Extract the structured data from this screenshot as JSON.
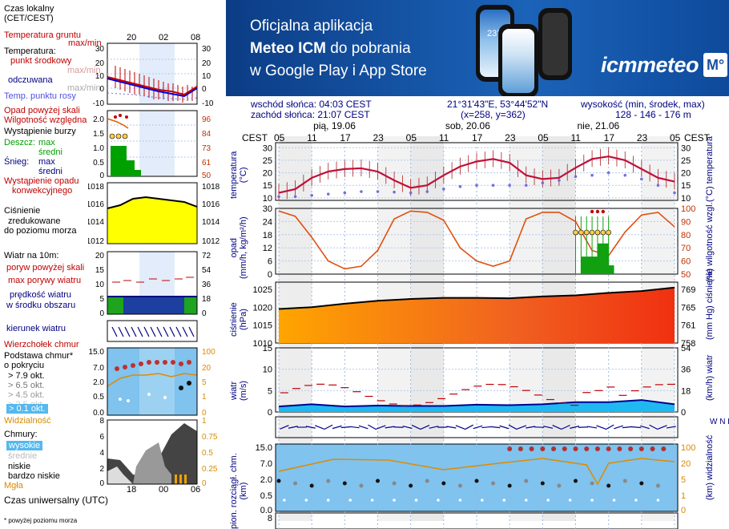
{
  "banner": {
    "line1": "Oficjalna aplikacja",
    "line2_bold": "Meteo ICM",
    "line2_rest": " do pobrania",
    "line3": "w Google Play i App Store",
    "logo_text": "icmmeteo",
    "logo_box": "M°",
    "phone_temp": "23°",
    "bg_color": "#1b63b8"
  },
  "info": {
    "sunrise": "wschód słońca: 04:03 CEST",
    "sunset": "zachód słońca: 21:07 CEST",
    "coords": "21°31'43\"E, 53°44'52\"N",
    "grid": "(x=258,  y=362)",
    "elev_title": "wysokość (min, środek, max)",
    "elev_values": "128 - 146 - 176 m"
  },
  "legend": {
    "time_local": "Czas lokalny\n(CET/CEST)",
    "soil_temp": "Temperatura gruntu",
    "soil_maxmin": "max/min",
    "temperature": "Temperatura:",
    "mid_point": "punkt środkowy",
    "mid_maxmin": "max/min",
    "felt": "odczuwana",
    "felt_maxmin": "max/min",
    "dew_point": "Temp. punktu rosy",
    "precip_above": "Opad powyżej skali",
    "rel_humidity": "Wilgotność względna",
    "storm": "Wystąpienie burzy",
    "rain": "Deszcz:",
    "rain_max": "max",
    "rain_mean": "średni",
    "snow": "Śnieg:",
    "snow_max": "max",
    "snow_mean": "średni",
    "precip_occ1": "Wystąpienie opadu",
    "precip_occ2": "konwekcyjnego",
    "pressure1": "Ciśnienie",
    "pressure2": "zredukowane",
    "pressure3": "do poziomu morza",
    "wind10": "Wiatr na 10m:",
    "gust_above": "poryw powyżej skali",
    "gust_max": "max porywy wiatru",
    "wind_mean1": "prędkość wiatru",
    "wind_mean2": "w środku obszaru",
    "wind_dir": "kierunek wiatru",
    "cloud_top": "Wierzchołek chmur",
    "cloud_base1": "Podstawa chmur*",
    "cloud_base2": "o pokryciu",
    "okt79": "> 7.9 okt.",
    "okt65": "> 6.5 okt.",
    "okt45": "> 4.5 okt.",
    "okt25": "> 2.5 okt.",
    "okt01": "> 0.1 okt.",
    "visibility": "Widzialność",
    "clouds": "Chmury:",
    "high": "wysokie",
    "medium": "średnie",
    "low": "niskie",
    "very_low": "bardzo niskie",
    "fog": "Mgła",
    "utc": "Czas uniwersalny (UTC)",
    "footnote": "* powyżej poziomu morza",
    "top_ticks": [
      "20",
      "02",
      "08"
    ],
    "bottom_ticks": [
      "18",
      "00",
      "06"
    ],
    "left_temp_ticks": [
      "30",
      "20",
      "10",
      "0",
      "-10"
    ],
    "right_temp_ticks": [
      "30",
      "20",
      "10",
      "0",
      "-10"
    ],
    "left_rain_ticks": [
      "2.0",
      "1.5",
      "1.0",
      "0.5",
      "0"
    ],
    "right_rh_ticks": [
      "96",
      "84",
      "73",
      "61",
      "50"
    ],
    "left_p_ticks": [
      "1018",
      "1016",
      "1014",
      "1012"
    ],
    "right_p_ticks": [
      "1018",
      "1016",
      "1014",
      "1012"
    ],
    "left_w_ticks": [
      "20",
      "15",
      "10",
      "5",
      "0"
    ],
    "right_w_ticks": [
      "72",
      "54",
      "36",
      "18",
      "0"
    ],
    "left_cb_ticks": [
      "15.0",
      "7.0",
      "2.0",
      "0.5",
      "0.0"
    ],
    "right_vis_ticks": [
      "100",
      "20",
      "5",
      "1",
      "0"
    ],
    "left_cl_ticks": [
      "8",
      "6",
      "4",
      "2",
      "0"
    ],
    "right_cl_ticks": [
      "1",
      "0.75",
      "0.5",
      "0.25",
      "0"
    ]
  },
  "main": {
    "tz": "CEST",
    "days": [
      "pią, 19.06",
      "sob, 20.06",
      "nie, 21.06"
    ],
    "hours": [
      "05",
      "11",
      "17",
      "23",
      "05",
      "11",
      "17",
      "23",
      "05",
      "11",
      "17",
      "23",
      "05"
    ],
    "temp_ylabel": "temperatura\n(°C)",
    "temp_ylabel_r": "(°C)  temperatura",
    "temp_ticks": [
      "30",
      "25",
      "20",
      "15",
      "10"
    ],
    "precip_ylabel": "opad\n(mm/h, kg/m²/h)",
    "precip_ylabel_r": "(%)  wilgotność wzgl.",
    "precip_ticks": [
      "30",
      "24",
      "18",
      "12",
      "6",
      "0"
    ],
    "rh_ticks": [
      "100",
      "90",
      "80",
      "70",
      "60",
      "50"
    ],
    "press_ylabel": "ciśnienie\n(hPa)",
    "press_ylabel_r": "(mm Hg)  ciśnienie",
    "press_ticks": [
      "1025",
      "1020",
      "1015",
      "1010"
    ],
    "mmhg_ticks": [
      "769",
      "765",
      "761",
      "758"
    ],
    "wind_ylabel": "wiatr\n(m/s)",
    "wind_ylabel_r": "(km/h)  wiatr",
    "wind_ticks": [
      "15",
      "10",
      "5",
      "0"
    ],
    "kmh_ticks": [
      "54",
      "36",
      "18",
      "0"
    ],
    "cloud_ylabel": "pion. rozciągł. chm.\n(km)",
    "cloud_ylabel_r": "(km)  widzialność",
    "cloud_ticks": [
      "15.0",
      "7.0",
      "2.0",
      "0.5",
      "0.0"
    ],
    "vis_ticks": [
      "100",
      "20",
      "5",
      "1",
      "0"
    ],
    "last_tick": "8",
    "wind_dir_r": "W N E S"
  },
  "chart_data": [
    {
      "type": "line",
      "title": "temperatura",
      "ylabel": "(°C)",
      "ylim": [
        9,
        32
      ],
      "x_hours": [
        0,
        3,
        6,
        9,
        12,
        15,
        18,
        21,
        24,
        27,
        30,
        33,
        36,
        39,
        42,
        45,
        48,
        51,
        54,
        57,
        60,
        63,
        66,
        69,
        72
      ],
      "series": [
        {
          "name": "",
          "values": [
            12,
            13.5,
            18,
            20.5,
            21.5,
            21.8,
            20.5,
            17,
            14,
            15,
            19,
            22.5,
            24.5,
            25.5,
            24,
            19,
            17.5,
            18,
            22,
            25.5,
            26.5,
            25,
            21.5,
            18,
            16.5
          ]
        },
        {
          "name": "",
          "values": [
            10.5,
            10.5,
            11,
            11.5,
            12,
            12.5,
            12.5,
            12.3,
            12,
            12.5,
            13.5,
            14.5,
            15,
            15,
            15,
            15,
            16,
            17,
            18.5,
            19,
            20,
            19,
            17.5,
            15,
            12
          ]
        }
      ]
    },
    {
      "type": "line",
      "title": "opad",
      "ylabel": "(mm/h, kg/m²/h)",
      "ylim": [
        0,
        30
      ],
      "x_hours": [
        0,
        3,
        6,
        9,
        12,
        15,
        18,
        21,
        24,
        27,
        30,
        33,
        36,
        39,
        42,
        45,
        48,
        51,
        54,
        57,
        60,
        63,
        66,
        69,
        72
      ],
      "series": [
        {
          "name": "",
          "values": [
            98,
            94,
            78,
            60,
            54,
            56,
            68,
            92,
            98,
            97,
            91,
            70,
            60,
            56,
            60,
            92,
            97,
            97,
            90,
            68,
            64,
            82,
            95,
            97,
            86
          ]
        }
      ]
    },
    {
      "type": "area",
      "title": "ciśnienie",
      "ylabel": "(hPa)",
      "ylim": [
        1010,
        1027
      ],
      "x_hours": [
        0,
        6,
        12,
        18,
        24,
        30,
        36,
        42,
        48,
        54,
        60,
        66,
        72
      ],
      "values": [
        1019.5,
        1020,
        1021,
        1021.8,
        1022.3,
        1022.6,
        1022.6,
        1022.5,
        1023,
        1023.3,
        1024,
        1024.5,
        1025.5
      ]
    },
    {
      "type": "area",
      "title": "wiatr",
      "ylabel": "(m/s)",
      "ylim": [
        0,
        15
      ],
      "x_hours": [
        0,
        6,
        12,
        18,
        24,
        30,
        36,
        42,
        48,
        54,
        60,
        66,
        72
      ],
      "values": [
        1.3,
        1.8,
        1.3,
        1.5,
        1.4,
        1.4,
        1.7,
        1.6,
        1.8,
        2.3,
        2.3,
        2.8,
        1.8
      ]
    }
  ]
}
